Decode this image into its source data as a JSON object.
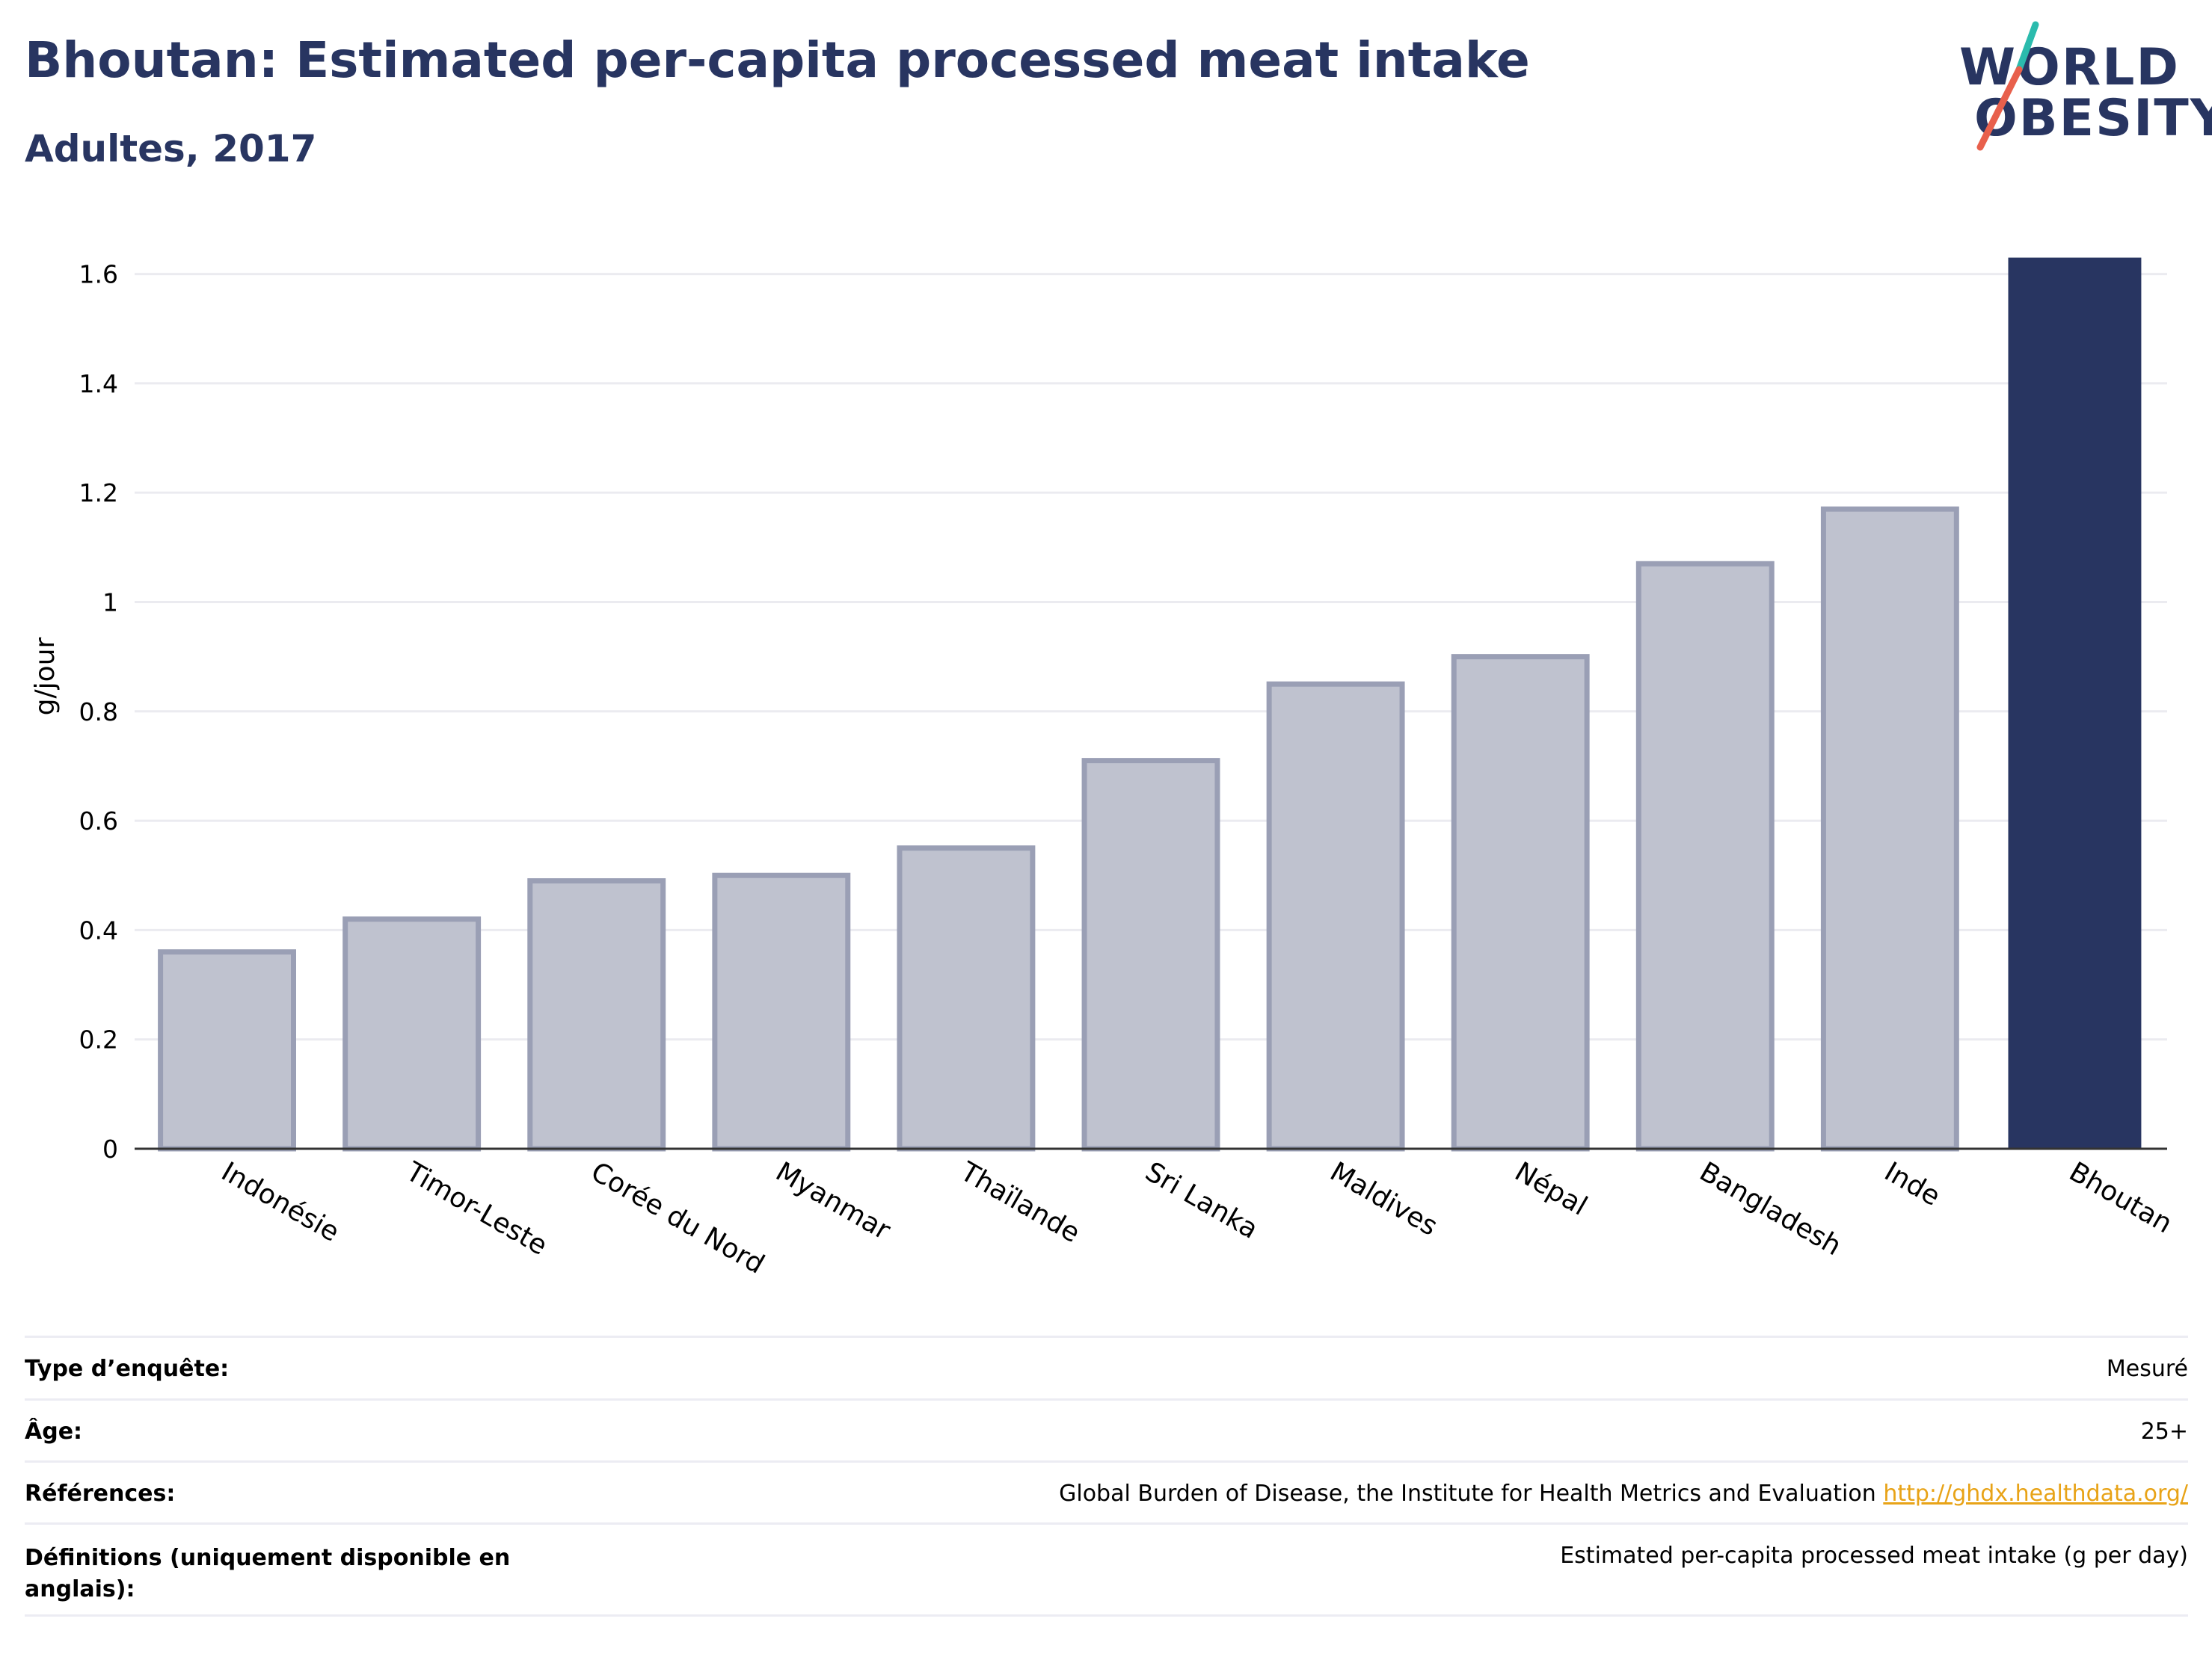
{
  "header": {
    "title": "Bhoutan: Estimated per-capita processed meat intake",
    "subtitle": "Adultes, 2017"
  },
  "logo": {
    "line1": "WORLD",
    "line2": "OBESITY",
    "accent_teal": "#2bbbad",
    "accent_red": "#e8604c"
  },
  "colors": {
    "highlight": "#283561",
    "bar_fill": "#bfc2cf",
    "bar_stroke": "#9a9fb5",
    "grid": "#ebebf0"
  },
  "chart_data": {
    "type": "bar",
    "title": "Bhoutan: Estimated per-capita processed meat intake",
    "subtitle": "Adultes, 2017",
    "xlabel": "",
    "ylabel": "g/jour",
    "ylim": [
      0,
      1.65
    ],
    "yticks": [
      0,
      0.2,
      0.4,
      0.6,
      0.8,
      1,
      1.2,
      1.4,
      1.6
    ],
    "ytick_labels": [
      "0",
      "0.2",
      "0.4",
      "0.6",
      "0.8",
      "1",
      "1.2",
      "1.4",
      "1.6"
    ],
    "grid": true,
    "categories": [
      "Indonésie",
      "Timor-Leste",
      "Corée du Nord",
      "Myanmar",
      "Thaïlande",
      "Sri Lanka",
      "Maldives",
      "Népal",
      "Bangladesh",
      "Inde",
      "Bhoutan"
    ],
    "values": [
      0.36,
      0.42,
      0.49,
      0.5,
      0.55,
      0.71,
      0.85,
      0.9,
      1.07,
      1.17,
      1.63
    ],
    "highlight": "Bhoutan"
  },
  "meta": [
    {
      "key": "Type d’enquête:",
      "value": "Mesuré"
    },
    {
      "key": "Âge:",
      "value": "25+"
    },
    {
      "key": "Références:",
      "value": "Global Burden of Disease, the Institute for Health Metrics and Evaluation",
      "link": "http://ghdx.healthdata.org/"
    },
    {
      "key": "Définitions (uniquement disponible en anglais):",
      "value": "Estimated per-capita processed meat intake (g per day)"
    }
  ]
}
